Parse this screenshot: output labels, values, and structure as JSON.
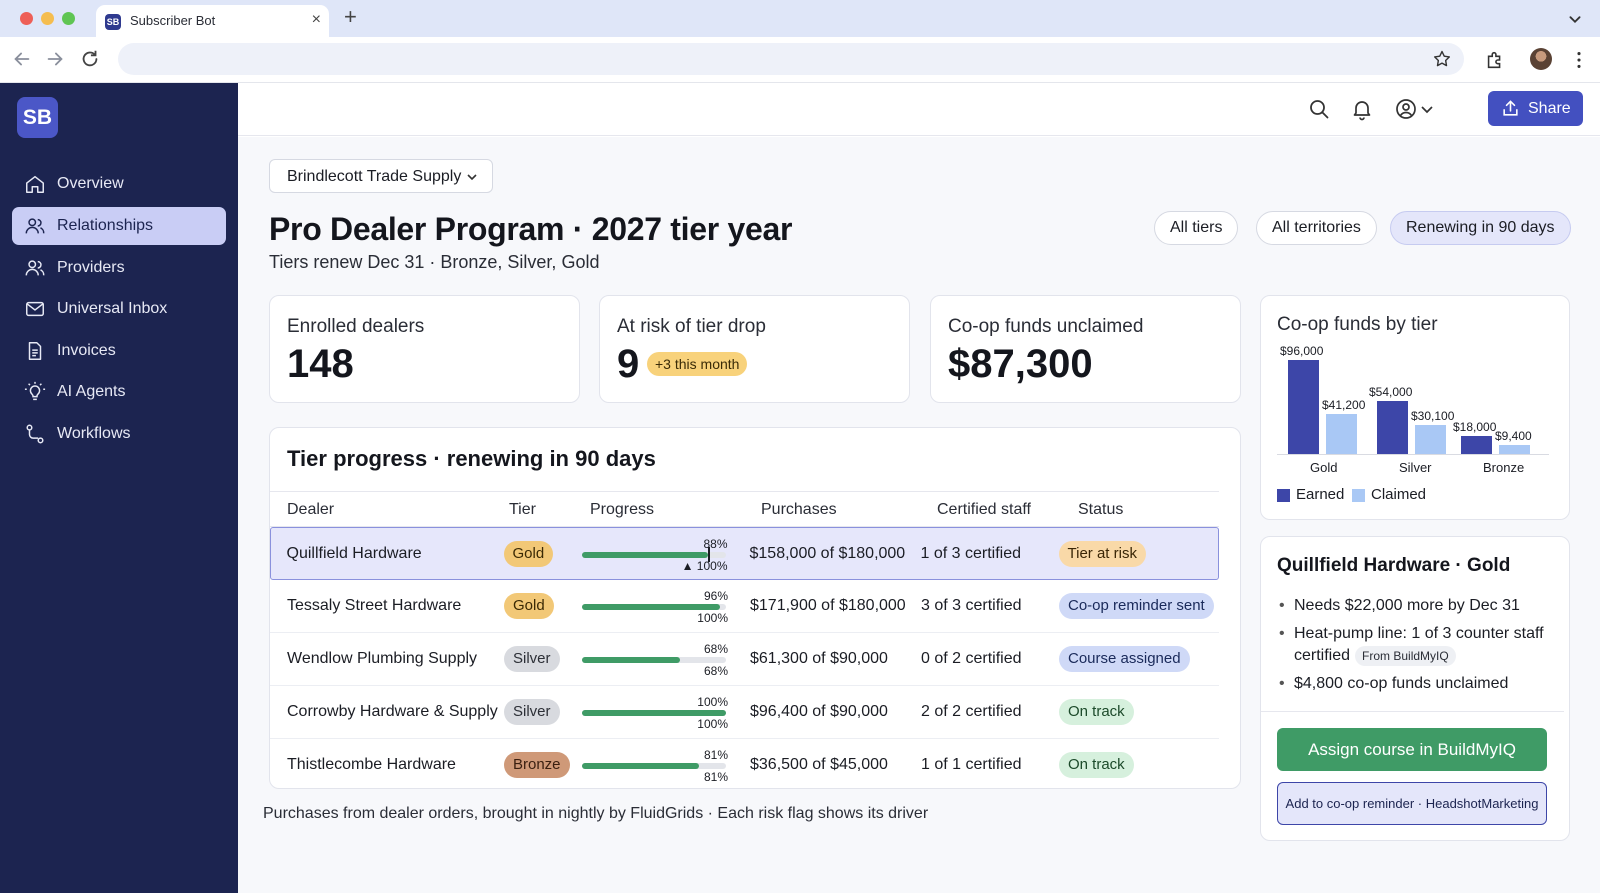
{
  "browser": {
    "tab_title": "Subscriber Bot",
    "tab_favicon": "SB",
    "tab_close": "×",
    "new_tab": "+"
  },
  "sidebar": {
    "brand": "SB",
    "items": [
      {
        "label": "Overview",
        "icon": "home-icon"
      },
      {
        "label": "Relationships",
        "icon": "people-icon"
      },
      {
        "label": "Providers",
        "icon": "people-icon"
      },
      {
        "label": "Universal Inbox",
        "icon": "mail-icon"
      },
      {
        "label": "Invoices",
        "icon": "document-icon"
      },
      {
        "label": "AI Agents",
        "icon": "lightbulb-icon"
      },
      {
        "label": "Workflows",
        "icon": "workflow-icon"
      }
    ],
    "active_index": 1
  },
  "header": {
    "share_label": "Share"
  },
  "org_select": {
    "value": "Brindlecott Trade Supply"
  },
  "page": {
    "title": "Pro Dealer Program · 2027 tier year",
    "subtitle": "Tiers renew Dec 31 · Bronze, Silver, Gold"
  },
  "filters": [
    {
      "label": "All tiers",
      "active": false
    },
    {
      "label": "All territories",
      "active": false
    },
    {
      "label": "Renewing in 90 days",
      "active": true
    }
  ],
  "stats": {
    "enrolled": {
      "label": "Enrolled dealers",
      "value": "148"
    },
    "at_risk": {
      "label": "At risk of tier drop",
      "value": "9",
      "badge": "+3 this month"
    },
    "coop": {
      "label": "Co-op funds unclaimed",
      "value": "$87,300"
    }
  },
  "table": {
    "title": "Tier progress · renewing in 90 days",
    "columns": [
      "Dealer",
      "Tier",
      "Progress",
      "Purchases",
      "Certified staff",
      "Status"
    ],
    "rows": [
      {
        "dealer": "Quillfield Hardware",
        "tier": "Gold",
        "tier_class": "gold",
        "progress": 88,
        "target": 100,
        "progress_label": "88%",
        "target_label": "▲ 100%",
        "purchases": "$158,000 of $180,000",
        "certified": "1 of 3 certified",
        "status": "Tier at risk",
        "status_class": "risk"
      },
      {
        "dealer": "Tessaly Street Hardware",
        "tier": "Gold",
        "tier_class": "gold",
        "progress": 96,
        "target": 100,
        "progress_label": "96%",
        "target_label": "100%",
        "purchases": "$171,900 of $180,000",
        "certified": "3 of 3 certified",
        "status": "Co-op reminder sent",
        "status_class": "blue"
      },
      {
        "dealer": "Wendlow Plumbing Supply",
        "tier": "Silver",
        "tier_class": "silver",
        "progress": 68,
        "target": 68,
        "progress_label": "68%",
        "target_label": "68%",
        "purchases": "$61,300 of $90,000",
        "certified": "0 of 2 certified",
        "status": "Course assigned",
        "status_class": "blue"
      },
      {
        "dealer": "Corrowby Hardware & Supply",
        "tier": "Silver",
        "tier_class": "silver",
        "progress": 100,
        "target": 100,
        "progress_label": "100%",
        "target_label": "100%",
        "purchases": "$96,400 of $90,000",
        "certified": "2 of 2 certified",
        "status": "On track",
        "status_class": "green"
      },
      {
        "dealer": "Thistlecombe Hardware",
        "tier": "Bronze",
        "tier_class": "bronze",
        "progress": 81,
        "target": 81,
        "progress_label": "81%",
        "target_label": "81%",
        "purchases": "$36,500 of $45,000",
        "certified": "1 of 1 certified",
        "status": "On track",
        "status_class": "green"
      }
    ]
  },
  "footnote": "Purchases from dealer orders, brought in nightly by FluidGrids · Each risk flag shows its driver",
  "chart_title": "Co-op funds by tier",
  "chart_data": {
    "type": "bar",
    "categories": [
      "Gold",
      "Silver",
      "Bronze"
    ],
    "series": [
      {
        "name": "Earned",
        "values": [
          96000,
          54000,
          18000
        ],
        "labels": [
          "$96,000",
          "$54,000",
          "$18,000"
        ],
        "color": "#3d46a8"
      },
      {
        "name": "Claimed",
        "values": [
          41200,
          30100,
          9400
        ],
        "labels": [
          "$41,200",
          "$30,100",
          "$9,400"
        ],
        "color": "#a9c8f5"
      }
    ],
    "ylim": [
      0,
      96000
    ],
    "legend": "bottom-left",
    "grid": false
  },
  "detail": {
    "title": "Quillfield Hardware · Gold",
    "bullets": [
      {
        "text": "Needs $22,000 more by Dec 31",
        "tag": ""
      },
      {
        "text": "Heat-pump line: 1 of 3 counter staff certified",
        "tag": "From BuildMyIQ"
      },
      {
        "text": "$4,800 co-op funds unclaimed",
        "tag": ""
      }
    ],
    "primary_action": "Assign course in BuildMyIQ",
    "secondary_action": "Add to co-op reminder · HeadshotMarketing"
  }
}
